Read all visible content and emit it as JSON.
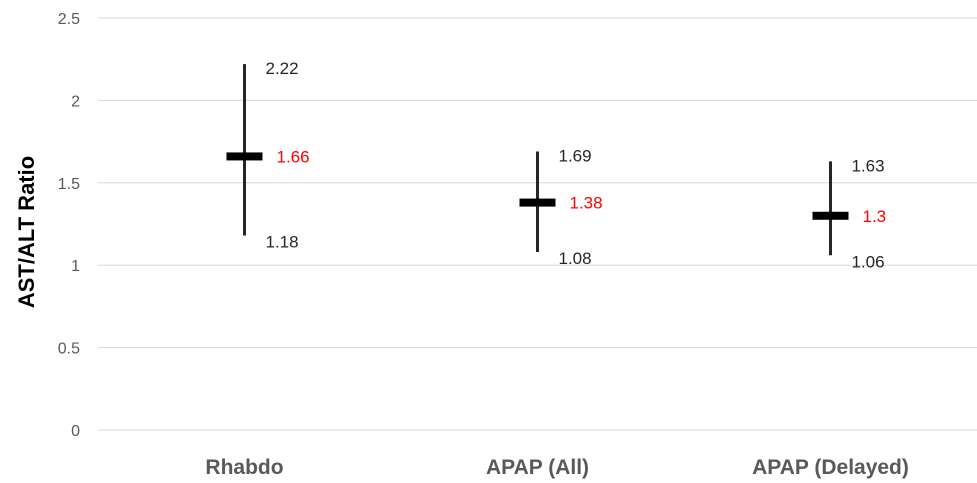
{
  "chart_data": {
    "type": "scatter",
    "title": "",
    "xlabel": "",
    "ylabel": "AST/ALT Ratio",
    "ylim": [
      0,
      2.5
    ],
    "yticks": [
      "0",
      "0.5",
      "1",
      "1.5",
      "2",
      "2.5"
    ],
    "grid": true,
    "categories": [
      "Rhabdo",
      "APAP (All)",
      "APAP (Delayed)"
    ],
    "points": [
      {
        "category": "Rhabdo",
        "mean": 1.66,
        "high": 2.22,
        "low": 1.18,
        "mean_label": "1.66",
        "high_label": "2.22",
        "low_label": "1.18"
      },
      {
        "category": "APAP (All)",
        "mean": 1.38,
        "high": 1.69,
        "low": 1.08,
        "mean_label": "1.38",
        "high_label": "1.69",
        "low_label": "1.08"
      },
      {
        "category": "APAP (Delayed)",
        "mean": 1.3,
        "high": 1.63,
        "low": 1.06,
        "mean_label": "1.3",
        "high_label": "1.63",
        "low_label": "1.06"
      }
    ],
    "colors": {
      "grid": "#d9d9d9",
      "marker": "#000000",
      "whisker": "#262626",
      "mean_label": "#ff0000",
      "range_label": "#262626"
    }
  }
}
